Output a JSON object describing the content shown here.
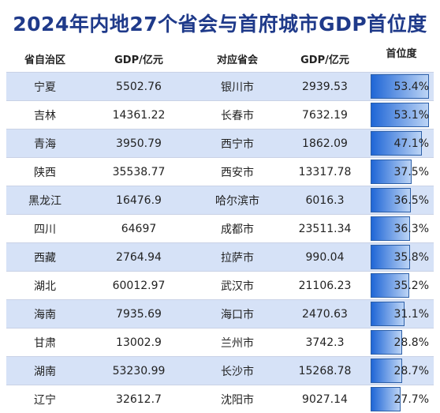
{
  "title": "2024年内地27个省会与首府城市GDP首位度",
  "headers": [
    "省自治区",
    "GDP/亿元",
    "对应省会",
    "GDP/亿元",
    "首位度"
  ],
  "rows": [
    {
      "province": "宁夏",
      "pgdp": "5502.76",
      "capital": "银川市",
      "cgdp": "2939.53",
      "primacy": "53.4%",
      "ratio": 0.534
    },
    {
      "province": "吉林",
      "pgdp": "14361.22",
      "capital": "长春市",
      "cgdp": "7632.19",
      "primacy": "53.1%",
      "ratio": 0.531
    },
    {
      "province": "青海",
      "pgdp": "3950.79",
      "capital": "西宁市",
      "cgdp": "1862.09",
      "primacy": "47.1%",
      "ratio": 0.471
    },
    {
      "province": "陕西",
      "pgdp": "35538.77",
      "capital": "西安市",
      "cgdp": "13317.78",
      "primacy": "37.5%",
      "ratio": 0.375
    },
    {
      "province": "黑龙江",
      "pgdp": "16476.9",
      "capital": "哈尔滨市",
      "cgdp": "6016.3",
      "primacy": "36.5%",
      "ratio": 0.365
    },
    {
      "province": "四川",
      "pgdp": "64697",
      "capital": "成都市",
      "cgdp": "23511.34",
      "primacy": "36.3%",
      "ratio": 0.363
    },
    {
      "province": "西藏",
      "pgdp": "2764.94",
      "capital": "拉萨市",
      "cgdp": "990.04",
      "primacy": "35.8%",
      "ratio": 0.358
    },
    {
      "province": "湖北",
      "pgdp": "60012.97",
      "capital": "武汉市",
      "cgdp": "21106.23",
      "primacy": "35.2%",
      "ratio": 0.352
    },
    {
      "province": "海南",
      "pgdp": "7935.69",
      "capital": "海口市",
      "cgdp": "2470.63",
      "primacy": "31.1%",
      "ratio": 0.311
    },
    {
      "province": "甘肃",
      "pgdp": "13002.9",
      "capital": "兰州市",
      "cgdp": "3742.3",
      "primacy": "28.8%",
      "ratio": 0.288
    },
    {
      "province": "湖南",
      "pgdp": "53230.99",
      "capital": "长沙市",
      "cgdp": "15268.78",
      "primacy": "28.7%",
      "ratio": 0.287
    },
    {
      "province": "辽宁",
      "pgdp": "32612.7",
      "capital": "沈阳市",
      "cgdp": "9027.14",
      "primacy": "27.7%",
      "ratio": 0.277
    }
  ]
}
